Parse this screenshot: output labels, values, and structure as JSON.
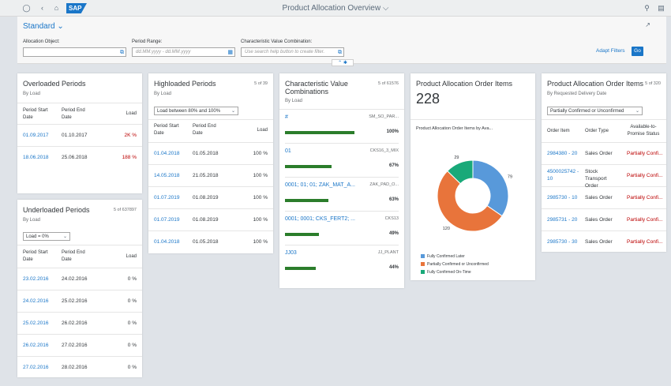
{
  "shell": {
    "app_title": "Product Allocation Overview",
    "logo_text": "SAP",
    "title_chevron": "⌵"
  },
  "filterbar": {
    "variant": "Standard",
    "fields": [
      {
        "label": "Allocation Object:",
        "value": "",
        "placeholder": ""
      },
      {
        "label": "Period Range:",
        "value": "",
        "placeholder": "dd.MM.yyyy - dd.MM.yyyy"
      },
      {
        "label": "Characteristic Value Combination:",
        "value": "",
        "placeholder": "Use search help button to create filter."
      }
    ],
    "adapt_filters": "Adapt Filters",
    "go": "Go"
  },
  "cards": {
    "overloaded": {
      "title": "Overloaded Periods",
      "subtitle": "By Load",
      "headers": [
        "Period Start Date",
        "Period End Date",
        "Load"
      ],
      "rows": [
        {
          "start": "01.09.2017",
          "end": "01.10.2017",
          "load": "2K %"
        },
        {
          "start": "18.06.2018",
          "end": "25.06.2018",
          "load": "188 %"
        }
      ]
    },
    "underloaded": {
      "title": "Underloaded Periods",
      "subtitle": "By Load",
      "count": "5 of 637897",
      "filter": "Load = 0%",
      "headers": [
        "Period Start Date",
        "Period End Date",
        "Load"
      ],
      "rows": [
        {
          "start": "23.02.2016",
          "end": "24.02.2016",
          "load": "0 %"
        },
        {
          "start": "24.02.2016",
          "end": "25.02.2016",
          "load": "0 %"
        },
        {
          "start": "25.02.2016",
          "end": "26.02.2016",
          "load": "0 %"
        },
        {
          "start": "26.02.2016",
          "end": "27.02.2016",
          "load": "0 %"
        },
        {
          "start": "27.02.2016",
          "end": "28.02.2016",
          "load": "0 %"
        }
      ]
    },
    "highloaded": {
      "title": "Highloaded Periods",
      "subtitle": "By Load",
      "count": "5 of 39",
      "filter": "Load between 80% and 100%",
      "headers": [
        "Period Start Date",
        "Period End Date",
        "Load"
      ],
      "rows": [
        {
          "start": "01.04.2018",
          "end": "01.05.2018",
          "load": "100 %"
        },
        {
          "start": "14.05.2018",
          "end": "21.05.2018",
          "load": "100 %"
        },
        {
          "start": "01.07.2019",
          "end": "01.08.2019",
          "load": "100 %"
        },
        {
          "start": "01.07.2019",
          "end": "01.08.2019",
          "load": "100 %"
        },
        {
          "start": "01.04.2018",
          "end": "01.05.2018",
          "load": "100 %"
        }
      ]
    },
    "cvc": {
      "title": "Characteristic Value Combinations",
      "subtitle": "By Load",
      "count": "5 of 61576",
      "rows": [
        {
          "name": "#",
          "code": "SM_SO_PAR...",
          "pct": "100%",
          "fill": 1.0
        },
        {
          "name": "01",
          "code": "CKS16_3_MIX",
          "pct": "67%",
          "fill": 0.67
        },
        {
          "name": "0001; 01; 01; ZAK_MAT_A...",
          "code": "ZAK_PAD_O...",
          "pct": "63%",
          "fill": 0.63
        },
        {
          "name": "0001; 0001; CKS_FERT2; ...",
          "code": "CKS13",
          "pct": "49%",
          "fill": 0.49
        },
        {
          "name": "JJ03",
          "code": "JJ_PLANT",
          "pct": "44%",
          "fill": 0.44
        }
      ]
    },
    "pao_kpi": {
      "title": "Product Allocation Order Items",
      "kpi": "228",
      "chart_title": "Product Allocation Order Items by Ava...",
      "legend": [
        "Fully Confirmed Later",
        "Partially Confirmed or Unconfirmed",
        "Fully Confirmed On-Time"
      ]
    },
    "pao_table": {
      "title": "Product Allocation Order Items",
      "subtitle": "By Requested Delivery Date",
      "count": "5 of 320",
      "filter": "Partially Confirmed or Unconfirmed",
      "headers": [
        "Order Item",
        "Order Type",
        "Available-to-Promise Status"
      ],
      "rows": [
        {
          "item": "2984380 - 20",
          "type": "Sales Order",
          "status": "Partially Confi..."
        },
        {
          "item": "4500025742 - 10",
          "type": "Stock Transport Order",
          "status": "Partially Confi..."
        },
        {
          "item": "2985730 - 10",
          "type": "Sales Order",
          "status": "Partially Confi..."
        },
        {
          "item": "2985731 - 20",
          "type": "Sales Order",
          "status": "Partially Confi..."
        },
        {
          "item": "2985730 - 30",
          "type": "Sales Order",
          "status": "Partially Confi..."
        }
      ]
    }
  },
  "chart_data": {
    "type": "pie",
    "title": "Product Allocation Order Items by Ava...",
    "categories": [
      "Fully Confirmed Later",
      "Partially Confirmed or Unconfirmed",
      "Fully Confirmed On-Time"
    ],
    "values": [
      79,
      120,
      29
    ],
    "colors": [
      "#5899da",
      "#e8743b",
      "#19a979"
    ],
    "donut": true,
    "legend": "bottom"
  }
}
